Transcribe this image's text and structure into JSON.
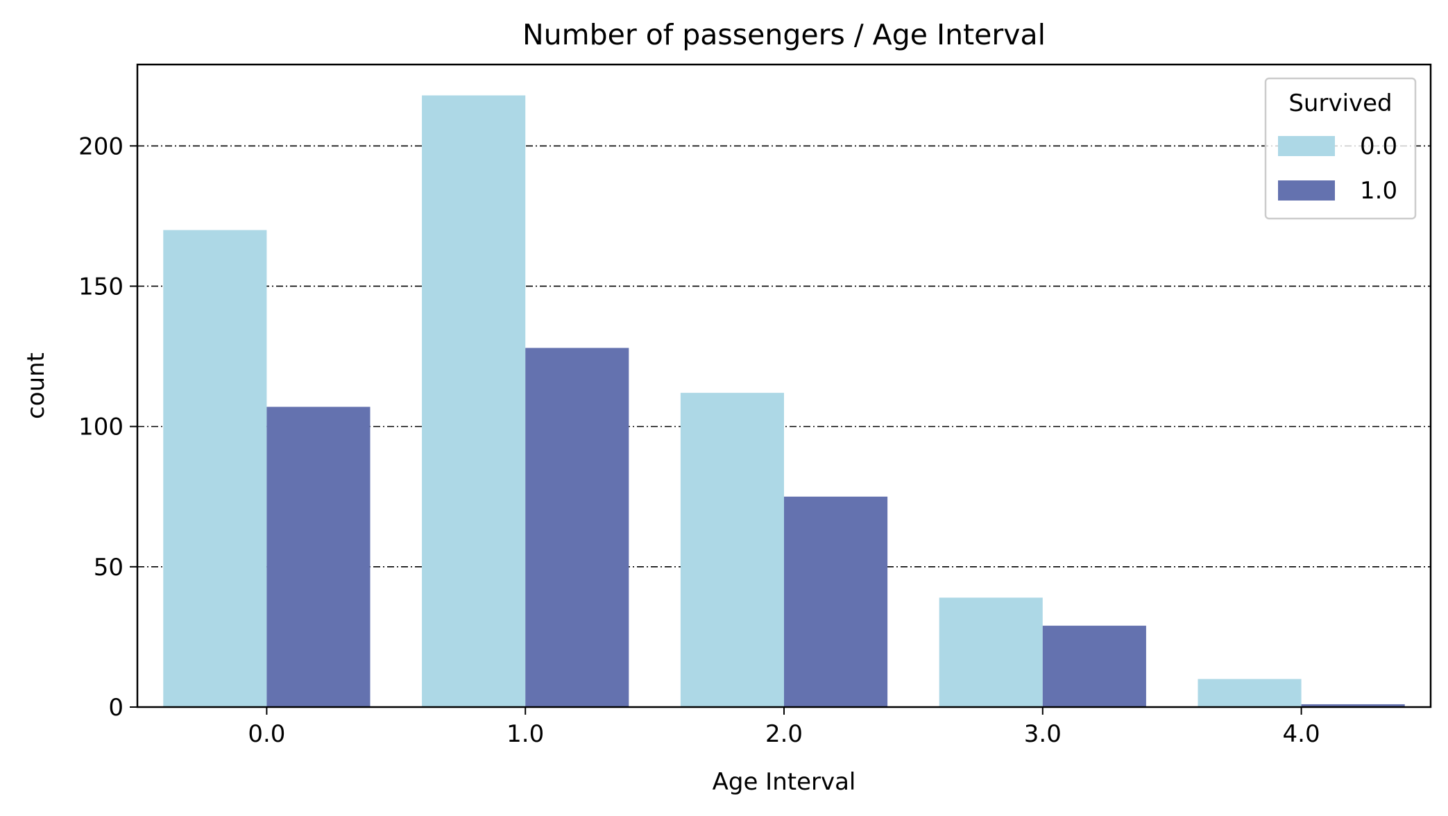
{
  "chart_data": {
    "type": "bar",
    "title": "Number of passengers / Age Interval",
    "xlabel": "Age Interval",
    "ylabel": "count",
    "categories": [
      "0.0",
      "1.0",
      "2.0",
      "3.0",
      "4.0"
    ],
    "series": [
      {
        "name": "0.0",
        "color": "#ADD8E6",
        "values": [
          170,
          218,
          112,
          39,
          10
        ]
      },
      {
        "name": "1.0",
        "color": "#6472AF",
        "values": [
          107,
          128,
          75,
          29,
          1
        ]
      }
    ],
    "ylim": [
      0,
      229
    ],
    "yticks": [
      0,
      50,
      100,
      150,
      200
    ],
    "grid": {
      "axis": "y",
      "style": "dash-dot",
      "color": "#000000"
    },
    "legend": {
      "title": "Survived",
      "placement": "top-right"
    }
  }
}
